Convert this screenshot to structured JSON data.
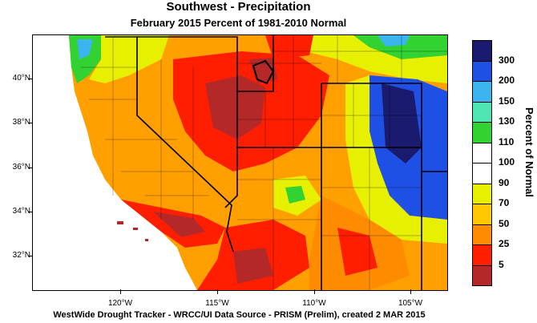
{
  "header": {
    "title": "Southwest - Precipitation",
    "subtitle": "February 2015  Percent of 1981-2010 Normal"
  },
  "map": {
    "latitude_labels": [
      "40°N",
      "38°N",
      "36°N",
      "34°N",
      "32°N"
    ],
    "longitude_labels": [
      "120°W",
      "115°W",
      "110°W",
      "105°W"
    ],
    "credit": "WestWide Drought Tracker - WRCC/UI  Data Source - PRISM (Prelim), created  2 MAR 2015"
  },
  "legend": {
    "title": "Percent of Normal",
    "labels": [
      "300",
      "200",
      "150",
      "130",
      "110",
      "100",
      "90",
      "70",
      "50",
      "25",
      "5"
    ],
    "colors": [
      "#1a1a6e",
      "#1e50e6",
      "#3cb4f0",
      "#50e6b4",
      "#32d232",
      "#ffffff",
      "#ffffff",
      "#e6f000",
      "#ffc800",
      "#ff8c00",
      "#ff1e00",
      "#b42828"
    ]
  }
}
